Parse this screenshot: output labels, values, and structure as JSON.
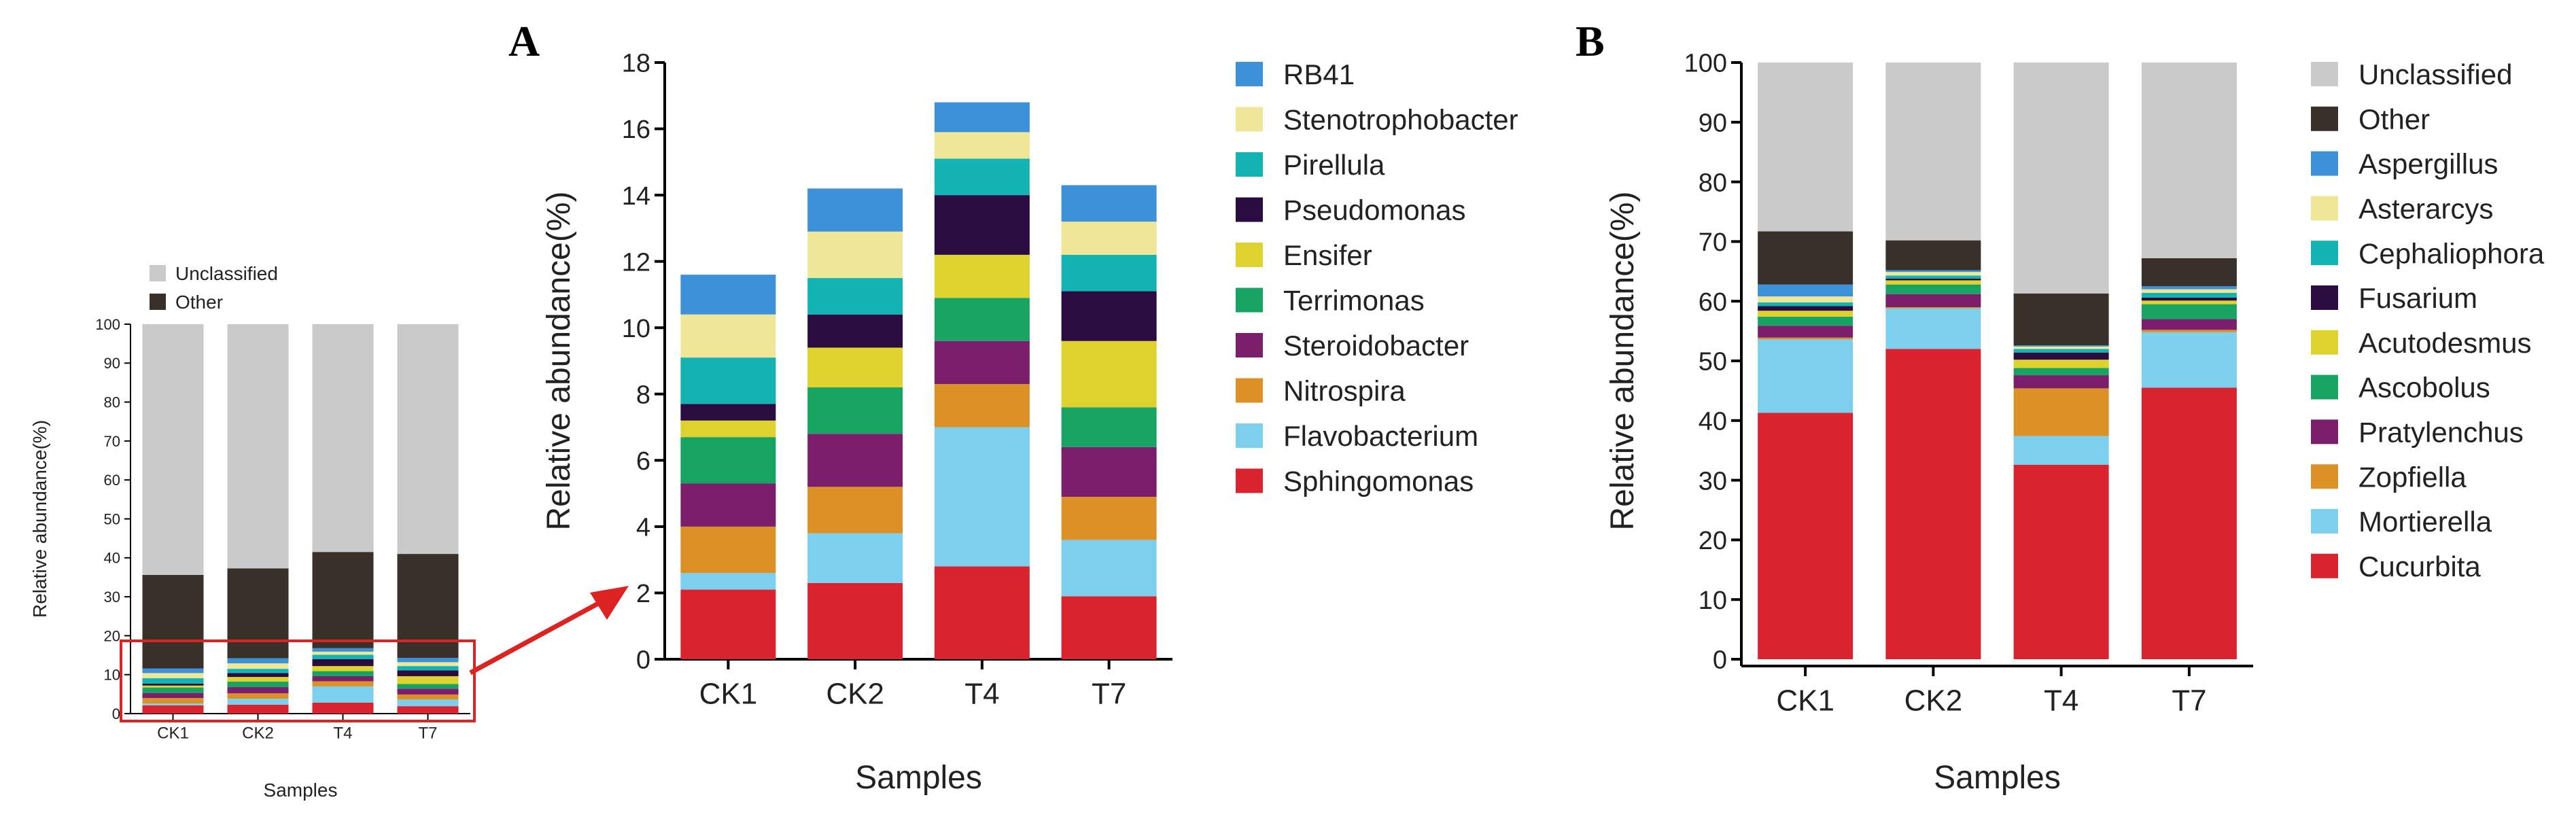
{
  "panels": {
    "a_letter": "A",
    "b_letter": "B"
  },
  "colors": {
    "Sphingomonas": "#d9232e",
    "Flavobacterium": "#7dcfee",
    "Nitrospira": "#dc9126",
    "Steroidobacter": "#7b1f6d",
    "Terrimonas": "#17a361",
    "Ensifer": "#ddd22e",
    "Pseudomonas": "#2b0c40",
    "Pirellula": "#12b3b2",
    "Stenotrophobacter": "#efe797",
    "RB41": "#3d91d8",
    "Other": "#393029",
    "Unclassified": "#cacaca",
    "Cucurbita": "#d9232e",
    "Mortierella": "#7dcfee",
    "Zopfiella": "#dc9126",
    "Pratylenchus": "#7b1f6d",
    "Ascobolus": "#17a361",
    "Acutodesmus": "#ddd22e",
    "Fusarium": "#2b0c40",
    "Cephaliophora": "#12b3b2",
    "Asterarcys": "#efe797",
    "Aspergillus": "#3d91d8",
    "highlight": "#dd2222"
  },
  "chart_data": [
    {
      "id": "overview",
      "type": "bar",
      "stacked": true,
      "title": "",
      "xlabel": "Samples",
      "ylabel": "Relative abundance(%)",
      "ylim": [
        0,
        100
      ],
      "yticks": [
        "0",
        "10",
        "20",
        "30",
        "40",
        "50",
        "60",
        "70",
        "80",
        "90",
        "100"
      ],
      "categories": [
        "CK1",
        "CK2",
        "T4",
        "T7"
      ],
      "legend_position": "top-left",
      "legend": [
        "Unclassified",
        "Other"
      ],
      "series": [
        {
          "name": "Sphingomonas",
          "values": [
            2.1,
            2.3,
            2.8,
            1.9
          ]
        },
        {
          "name": "Flavobacterium",
          "values": [
            0.5,
            1.5,
            4.2,
            1.7
          ]
        },
        {
          "name": "Nitrospira",
          "values": [
            1.4,
            1.4,
            1.3,
            1.3
          ]
        },
        {
          "name": "Steroidobacter",
          "values": [
            1.3,
            1.6,
            1.3,
            1.5
          ]
        },
        {
          "name": "Terrimonas",
          "values": [
            1.4,
            1.4,
            1.3,
            1.2
          ]
        },
        {
          "name": "Ensifer",
          "values": [
            0.5,
            1.2,
            1.3,
            2.0
          ]
        },
        {
          "name": "Pseudomonas",
          "values": [
            0.5,
            1.0,
            1.8,
            1.5
          ]
        },
        {
          "name": "Pirellula",
          "values": [
            1.4,
            1.1,
            1.1,
            1.1
          ]
        },
        {
          "name": "Stenotrophobacter",
          "values": [
            1.3,
            1.4,
            0.8,
            1.0
          ]
        },
        {
          "name": "RB41",
          "values": [
            1.2,
            1.3,
            0.9,
            1.1
          ]
        },
        {
          "name": "Other",
          "values": [
            24.0,
            23.1,
            24.7,
            26.7
          ]
        },
        {
          "name": "Unclassified",
          "values": [
            64.4,
            62.7,
            58.5,
            59.0
          ]
        }
      ]
    },
    {
      "id": "A",
      "type": "bar",
      "stacked": true,
      "title": "",
      "xlabel": "Samples",
      "ylabel": "Relative abundance(%)",
      "ylim": [
        0,
        18
      ],
      "yticks": [
        "0",
        "2",
        "4",
        "6",
        "8",
        "10",
        "12",
        "14",
        "16",
        "18"
      ],
      "categories": [
        "CK1",
        "CK2",
        "T4",
        "T7"
      ],
      "legend_position": "right",
      "legend": [
        "RB41",
        "Stenotrophobacter",
        "Pirellula",
        "Pseudomonas",
        "Ensifer",
        "Terrimonas",
        "Steroidobacter",
        "Nitrospira",
        "Flavobacterium",
        "Sphingomonas"
      ],
      "series": [
        {
          "name": "Sphingomonas",
          "values": [
            2.1,
            2.3,
            2.8,
            1.9
          ]
        },
        {
          "name": "Flavobacterium",
          "values": [
            0.5,
            1.5,
            4.2,
            1.7
          ]
        },
        {
          "name": "Nitrospira",
          "values": [
            1.4,
            1.4,
            1.3,
            1.3
          ]
        },
        {
          "name": "Steroidobacter",
          "values": [
            1.3,
            1.6,
            1.3,
            1.5
          ]
        },
        {
          "name": "Terrimonas",
          "values": [
            1.4,
            1.4,
            1.3,
            1.2
          ]
        },
        {
          "name": "Ensifer",
          "values": [
            0.5,
            1.2,
            1.3,
            2.0
          ]
        },
        {
          "name": "Pseudomonas",
          "values": [
            0.5,
            1.0,
            1.8,
            1.5
          ]
        },
        {
          "name": "Pirellula",
          "values": [
            1.4,
            1.1,
            1.1,
            1.1
          ]
        },
        {
          "name": "Stenotrophobacter",
          "values": [
            1.3,
            1.4,
            0.8,
            1.0
          ]
        },
        {
          "name": "RB41",
          "values": [
            1.2,
            1.3,
            0.9,
            1.1
          ]
        }
      ]
    },
    {
      "id": "B",
      "type": "bar",
      "stacked": true,
      "title": "",
      "xlabel": "Samples",
      "ylabel": "Relative abundance(%)",
      "ylim": [
        0,
        100
      ],
      "yticks": [
        "0",
        "10",
        "20",
        "30",
        "40",
        "50",
        "60",
        "70",
        "80",
        "90",
        "100"
      ],
      "categories": [
        "CK1",
        "CK2",
        "T4",
        "T7"
      ],
      "legend_position": "right",
      "legend": [
        "Unclassified",
        "Other",
        "Aspergillus",
        "Asterarcys",
        "Cephaliophora",
        "Fusarium",
        "Acutodesmus",
        "Ascobolus",
        "Pratylenchus",
        "Zopfiella",
        "Mortierella",
        "Cucurbita"
      ],
      "series": [
        {
          "name": "Cucurbita",
          "values": [
            41.3,
            52.0,
            32.6,
            45.5
          ]
        },
        {
          "name": "Mortierella",
          "values": [
            12.3,
            6.8,
            4.8,
            9.3
          ]
        },
        {
          "name": "Zopfiella",
          "values": [
            0.3,
            0.2,
            8.0,
            0.4
          ]
        },
        {
          "name": "Pratylenchus",
          "values": [
            2.0,
            2.2,
            2.2,
            1.8
          ]
        },
        {
          "name": "Ascobolus",
          "values": [
            1.5,
            1.6,
            1.2,
            2.5
          ]
        },
        {
          "name": "Acutodesmus",
          "values": [
            1.0,
            0.7,
            1.4,
            0.6
          ]
        },
        {
          "name": "Fusarium",
          "values": [
            0.8,
            0.3,
            1.2,
            0.5
          ]
        },
        {
          "name": "Cephaliophora",
          "values": [
            0.6,
            0.5,
            0.6,
            0.8
          ]
        },
        {
          "name": "Asterarcys",
          "values": [
            1.0,
            0.6,
            0.4,
            0.6
          ]
        },
        {
          "name": "Aspergillus",
          "values": [
            2.0,
            0.3,
            0.2,
            0.5
          ]
        },
        {
          "name": "Other",
          "values": [
            8.9,
            5.0,
            8.7,
            4.7
          ]
        },
        {
          "name": "Unclassified",
          "values": [
            28.3,
            29.8,
            38.7,
            32.8
          ]
        }
      ]
    }
  ]
}
